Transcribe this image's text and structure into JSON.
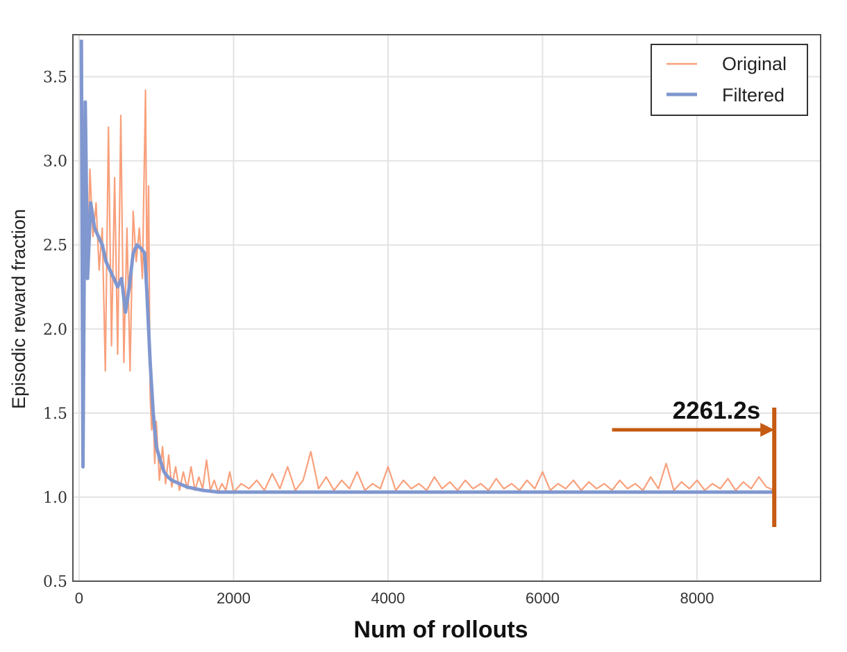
{
  "chart_data": {
    "type": "line",
    "xlabel": "Num of rollouts",
    "ylabel": "Episodic reward fraction",
    "xlim": [
      -80,
      9600
    ],
    "ylim": [
      0.5,
      3.75
    ],
    "xticks": [
      0,
      2000,
      4000,
      6000,
      8000
    ],
    "yticks": [
      0.5,
      1.0,
      1.5,
      2.0,
      2.5,
      3.0,
      3.5
    ],
    "grid": true,
    "legend_position": "top-right",
    "colors": {
      "original": "#f8a07c",
      "filtered": "#8097cf",
      "annotation": "#c55a11"
    },
    "series": [
      {
        "name": "Original",
        "x": [
          30,
          60,
          80,
          110,
          140,
          180,
          220,
          260,
          300,
          340,
          380,
          420,
          460,
          500,
          540,
          580,
          620,
          660,
          700,
          740,
          780,
          820,
          860,
          880,
          900,
          920,
          940,
          960,
          980,
          1000,
          1040,
          1080,
          1120,
          1160,
          1200,
          1250,
          1300,
          1350,
          1400,
          1450,
          1500,
          1550,
          1600,
          1650,
          1700,
          1750,
          1800,
          1850,
          1900,
          1950,
          2000,
          2100,
          2200,
          2300,
          2400,
          2500,
          2600,
          2700,
          2800,
          2900,
          3000,
          3100,
          3200,
          3300,
          3400,
          3500,
          3600,
          3700,
          3800,
          3900,
          4000,
          4100,
          4200,
          4300,
          4400,
          4500,
          4600,
          4700,
          4800,
          4900,
          5000,
          5100,
          5200,
          5300,
          5400,
          5500,
          5600,
          5700,
          5800,
          5900,
          6000,
          6100,
          6200,
          6300,
          6400,
          6500,
          6600,
          6700,
          6800,
          6900,
          7000,
          7100,
          7200,
          7300,
          7400,
          7500,
          7600,
          7700,
          7800,
          7900,
          8000,
          8100,
          8200,
          8300,
          8400,
          8500,
          8600,
          8700,
          8800,
          8900,
          9000
        ],
        "values": [
          3.72,
          1.18,
          3.35,
          2.3,
          2.95,
          2.55,
          2.75,
          2.35,
          2.6,
          1.75,
          3.2,
          1.9,
          2.9,
          1.85,
          3.27,
          1.8,
          2.6,
          1.75,
          2.7,
          2.4,
          2.6,
          2.3,
          3.42,
          2.2,
          2.85,
          1.6,
          1.4,
          1.5,
          1.2,
          1.45,
          1.1,
          1.3,
          1.08,
          1.25,
          1.06,
          1.18,
          1.04,
          1.15,
          1.05,
          1.18,
          1.04,
          1.12,
          1.05,
          1.22,
          1.04,
          1.1,
          1.03,
          1.08,
          1.04,
          1.15,
          1.03,
          1.08,
          1.05,
          1.1,
          1.04,
          1.14,
          1.05,
          1.18,
          1.04,
          1.1,
          1.27,
          1.05,
          1.12,
          1.04,
          1.1,
          1.05,
          1.15,
          1.04,
          1.08,
          1.05,
          1.18,
          1.04,
          1.1,
          1.05,
          1.08,
          1.04,
          1.12,
          1.05,
          1.09,
          1.04,
          1.1,
          1.05,
          1.08,
          1.04,
          1.11,
          1.05,
          1.08,
          1.04,
          1.1,
          1.05,
          1.15,
          1.04,
          1.08,
          1.05,
          1.1,
          1.04,
          1.09,
          1.05,
          1.08,
          1.04,
          1.1,
          1.05,
          1.08,
          1.04,
          1.12,
          1.05,
          1.2,
          1.04,
          1.09,
          1.05,
          1.1,
          1.04,
          1.08,
          1.05,
          1.11,
          1.04,
          1.09,
          1.05,
          1.12,
          1.06,
          1.04
        ]
      },
      {
        "name": "Filtered",
        "x": [
          30,
          50,
          80,
          110,
          150,
          200,
          250,
          300,
          350,
          400,
          450,
          500,
          550,
          600,
          650,
          700,
          750,
          800,
          850,
          880,
          920,
          960,
          1000,
          1050,
          1100,
          1150,
          1200,
          1300,
          1400,
          1500,
          1600,
          1700,
          1800,
          1900,
          2000,
          3000,
          4000,
          5000,
          6000,
          7000,
          8000,
          9000
        ],
        "values": [
          3.72,
          1.18,
          3.35,
          2.3,
          2.75,
          2.6,
          2.55,
          2.5,
          2.4,
          2.35,
          2.3,
          2.25,
          2.3,
          2.1,
          2.25,
          2.45,
          2.5,
          2.48,
          2.45,
          2.2,
          1.8,
          1.5,
          1.3,
          1.22,
          1.15,
          1.12,
          1.1,
          1.08,
          1.06,
          1.05,
          1.04,
          1.035,
          1.03,
          1.03,
          1.03,
          1.03,
          1.03,
          1.03,
          1.03,
          1.03,
          1.03,
          1.03
        ]
      }
    ],
    "annotation": {
      "text": "2261.2s",
      "x_start": 6900,
      "x_end": 9000,
      "y": 1.4
    }
  }
}
